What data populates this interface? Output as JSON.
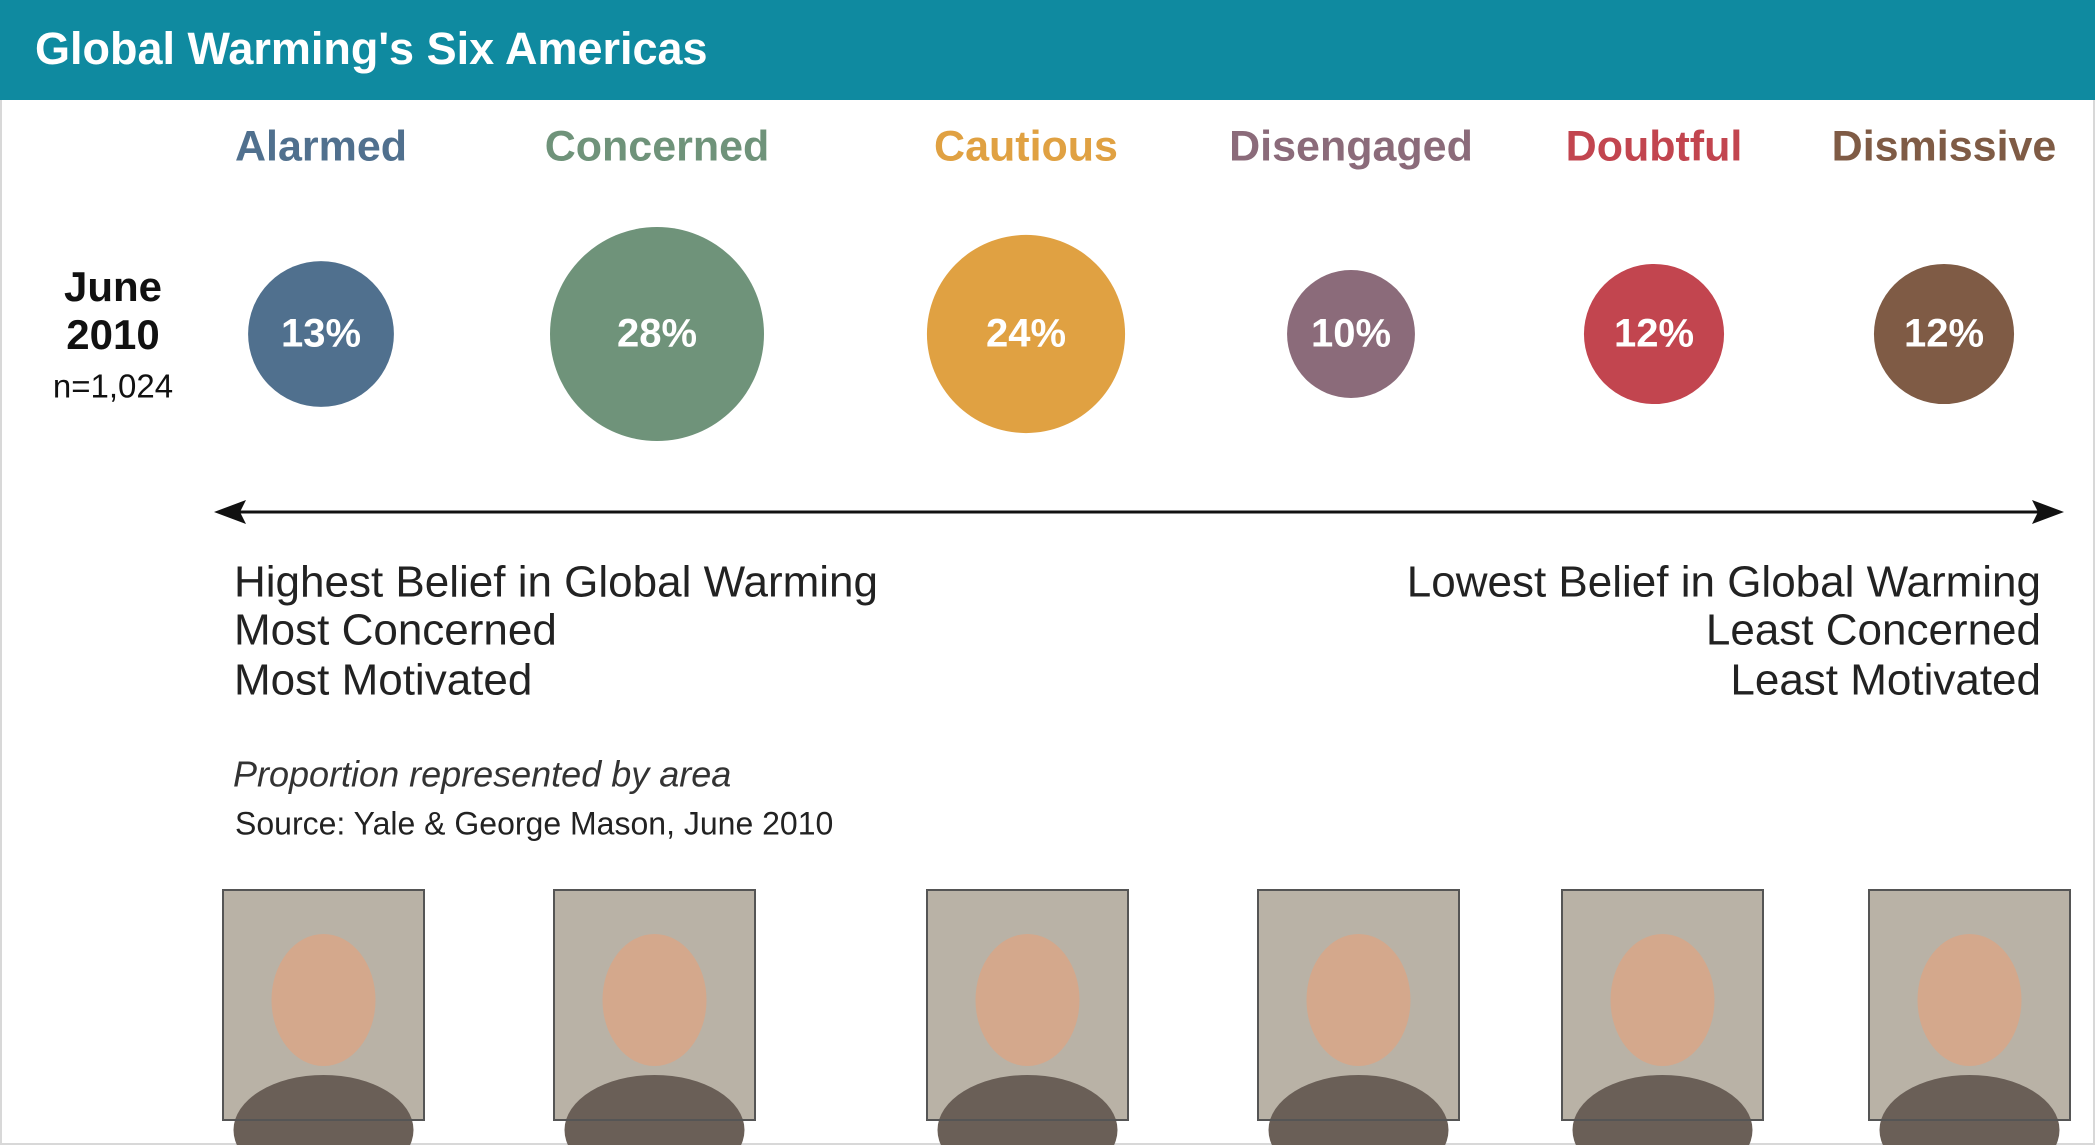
{
  "chart_data": {
    "type": "bubble",
    "title": "Global Warming's Six Americas",
    "row_label": [
      "June",
      "2010"
    ],
    "sample": "n=1,024",
    "categories": [
      "Alarmed",
      "Concerned",
      "Cautious",
      "Disengaged",
      "Doubtful",
      "Dismissive"
    ],
    "values": [
      13,
      28,
      24,
      10,
      12,
      12
    ],
    "value_labels": [
      "13%",
      "28%",
      "24%",
      "10%",
      "12%",
      "12%"
    ],
    "colors": [
      "#50708e",
      "#6f937a",
      "#e0a142",
      "#8b6b7a",
      "#c2454f",
      "#7f5b45"
    ],
    "left_annotation": [
      "Highest Belief in Global Warming",
      "Most Concerned",
      "Most Motivated"
    ],
    "right_annotation": [
      "Lowest Belief in Global Warming",
      "Least Concerned",
      "Least Motivated"
    ],
    "note": "Proportion represented by area",
    "source": "Source: Yale & George Mason, June 2010"
  }
}
